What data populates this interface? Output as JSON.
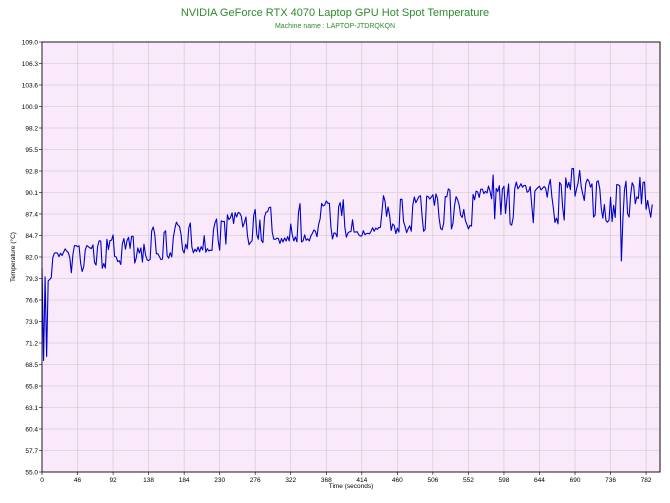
{
  "chart_data": {
    "type": "line",
    "title": "NVIDIA GeForce RTX 4070 Laptop GPU Hot Spot Temperature",
    "subtitle": "Machine name : LAPTOP-JTDRQKQN",
    "xlabel": "Time (seconds)",
    "ylabel": "Temperature (°C)",
    "xlim": [
      0,
      800
    ],
    "ylim": [
      55.0,
      109.0
    ],
    "xticks": [
      0,
      46,
      92,
      138,
      184,
      230,
      276,
      322,
      368,
      414,
      460,
      506,
      552,
      598,
      644,
      690,
      736,
      782
    ],
    "yticks": [
      55.0,
      57.7,
      60.4,
      63.1,
      65.8,
      68.5,
      71.2,
      73.9,
      76.6,
      79.3,
      82.0,
      84.7,
      87.4,
      90.1,
      92.8,
      95.5,
      98.2,
      100.9,
      103.6,
      106.3,
      109.0
    ],
    "grid": true,
    "legend": "none",
    "colors": {
      "line": "#0000cc",
      "plot_background": "#f9e9fb",
      "grid": "#c8c8c8",
      "title": "#2e8b2e"
    },
    "series": [
      {
        "trend": [
          [
            0,
            79.0
          ],
          [
            8,
            80.5
          ],
          [
            20,
            81.0
          ],
          [
            46,
            81.8
          ],
          [
            92,
            82.7
          ],
          [
            138,
            83.6
          ],
          [
            184,
            84.4
          ],
          [
            230,
            85.1
          ],
          [
            276,
            85.7
          ],
          [
            322,
            86.2
          ],
          [
            368,
            86.6
          ],
          [
            414,
            87.0
          ],
          [
            460,
            87.4
          ],
          [
            506,
            87.8
          ],
          [
            552,
            88.1
          ],
          [
            598,
            88.4
          ],
          [
            644,
            88.7
          ],
          [
            690,
            88.9
          ],
          [
            736,
            89.1
          ],
          [
            782,
            89.3
          ],
          [
            800,
            89.4
          ]
        ],
        "amplitude": [
          [
            0,
            1.8
          ],
          [
            100,
            2.2
          ],
          [
            300,
            2.4
          ],
          [
            500,
            2.6
          ],
          [
            800,
            2.8
          ]
        ],
        "dips": [
          [
            1,
            80.0
          ],
          [
            2,
            69.0
          ],
          [
            3,
            69.0
          ],
          [
            4,
            79.5
          ],
          [
            5,
            76.0
          ],
          [
            6,
            69.5
          ],
          [
            7,
            79.0
          ],
          [
            750,
            81.5
          ]
        ],
        "seed": 4070
      }
    ]
  }
}
